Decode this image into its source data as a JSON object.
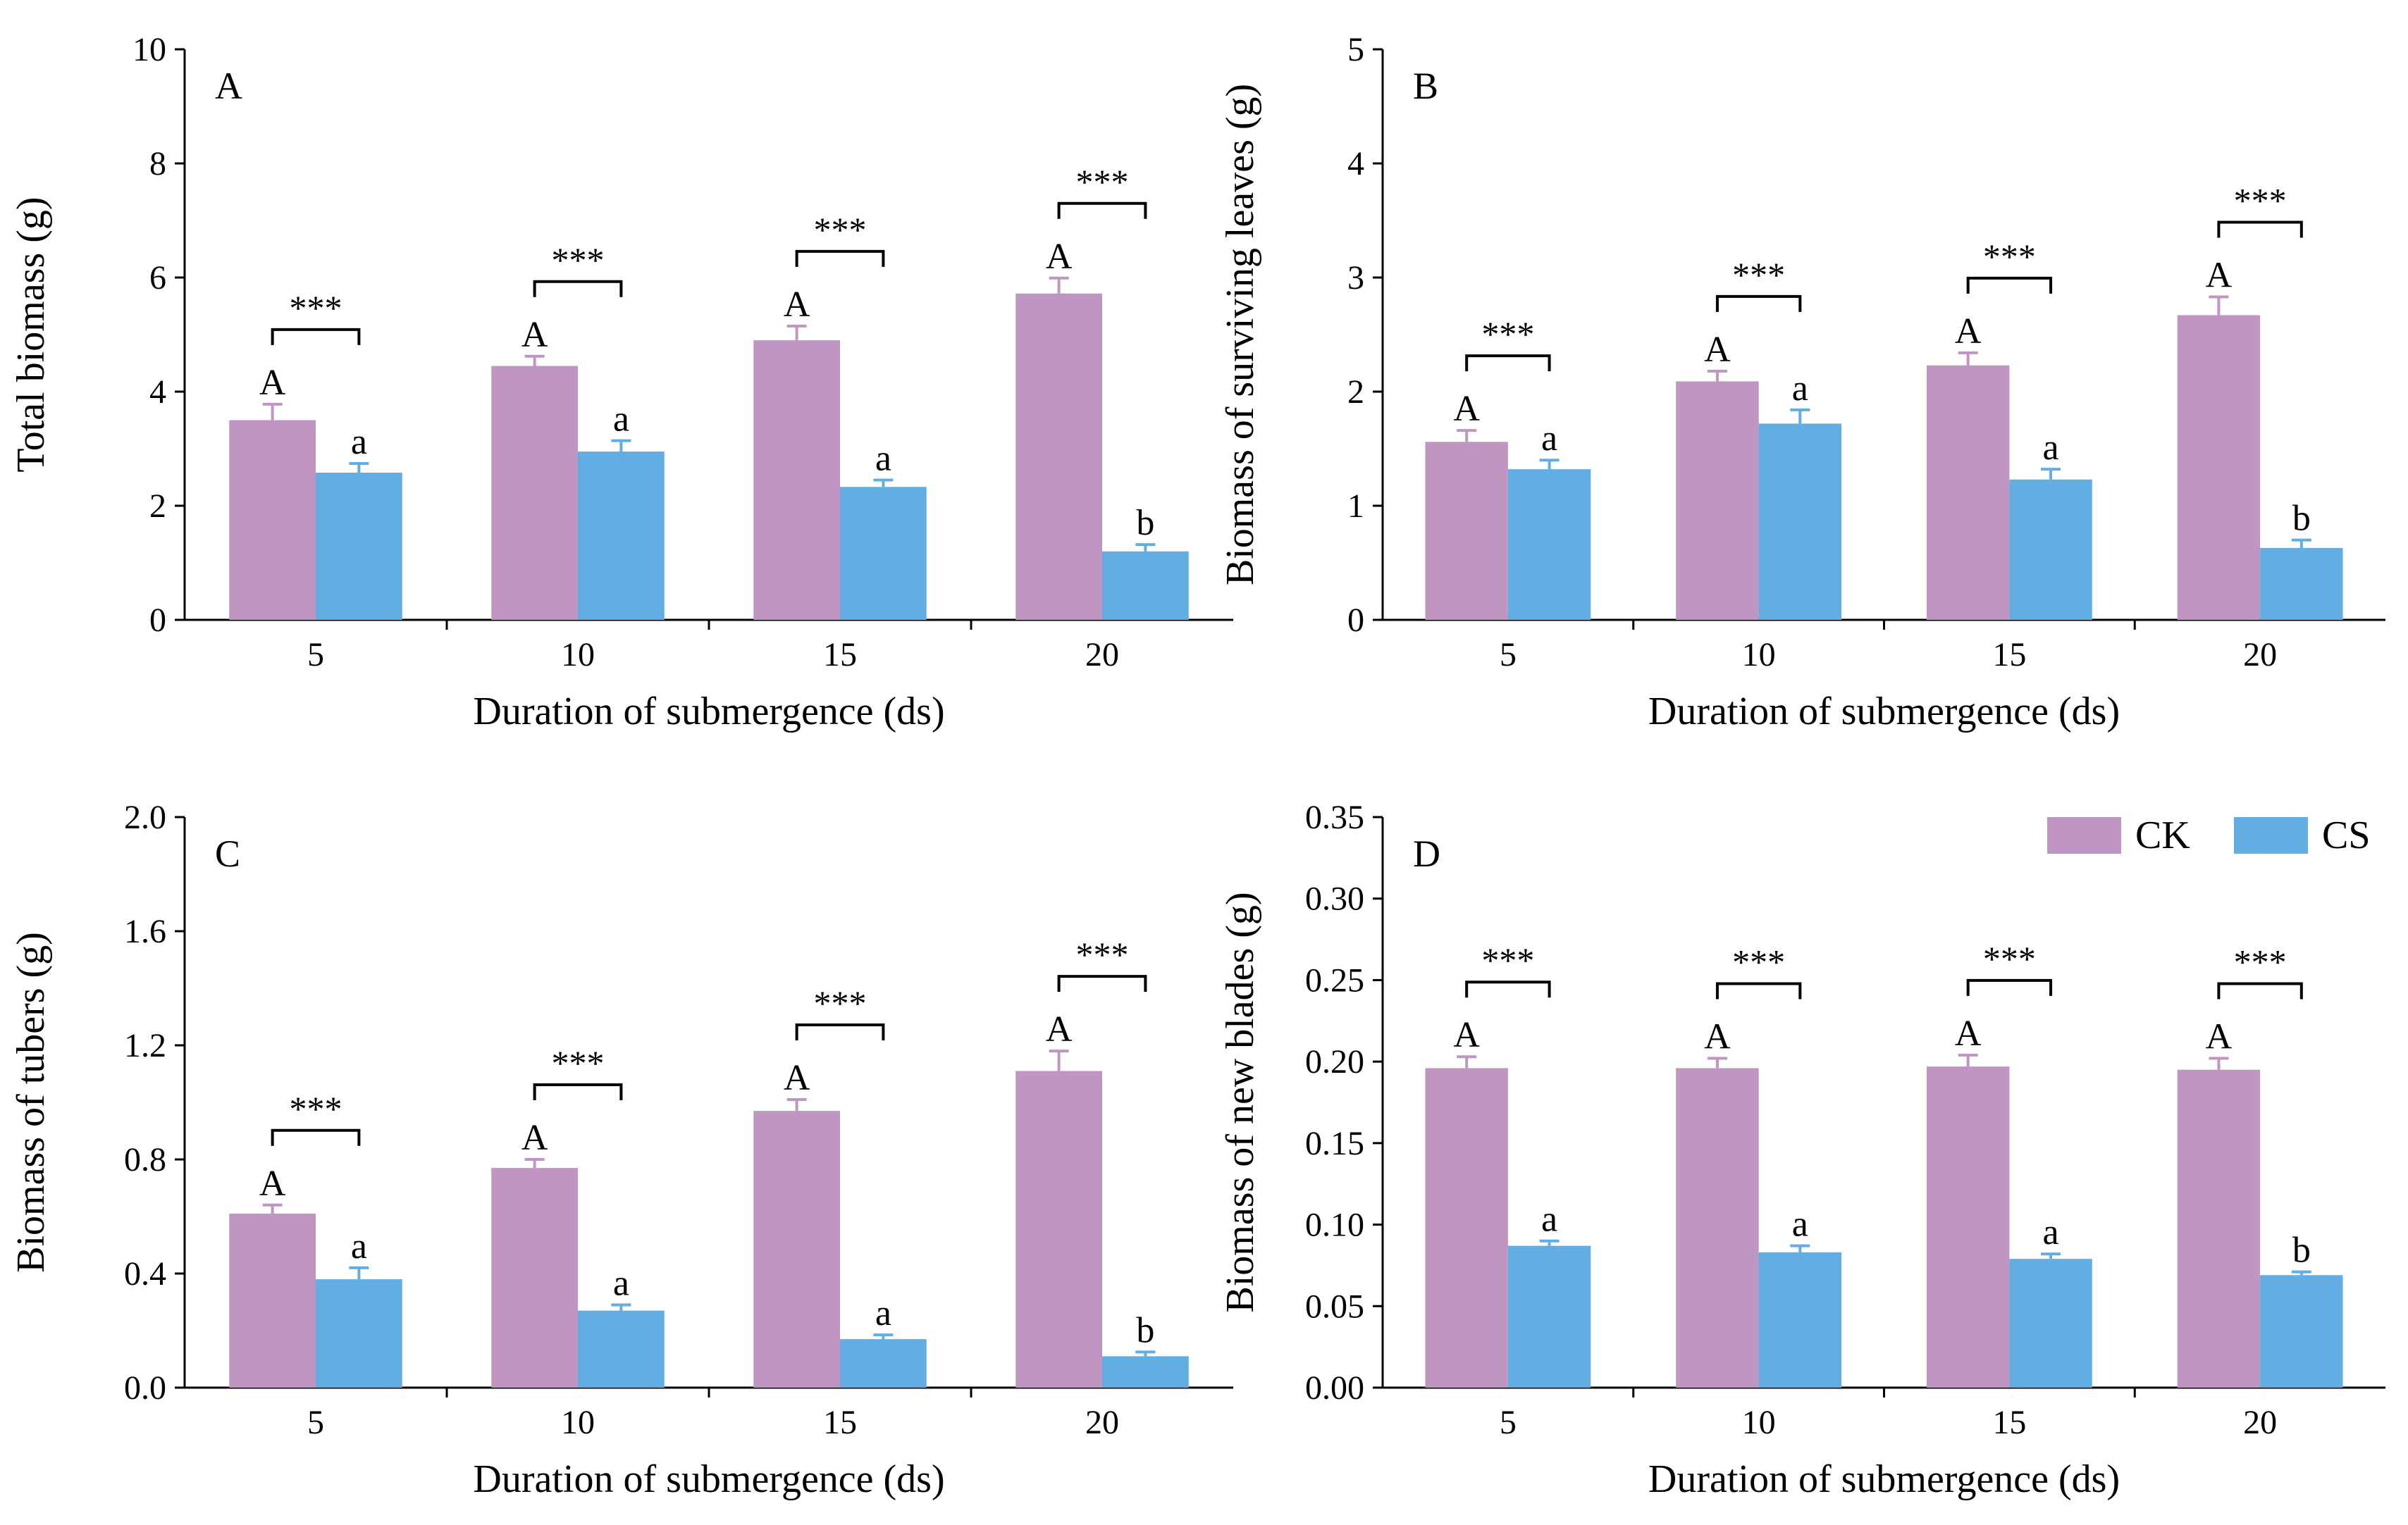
{
  "chart_data": [
    {
      "type": "bar",
      "panel": "A",
      "categories": [
        "5",
        "10",
        "15",
        "20"
      ],
      "series": [
        {
          "name": "CK",
          "values": [
            3.5,
            4.45,
            4.9,
            5.72
          ],
          "errors": [
            0.28,
            0.17,
            0.25,
            0.27
          ],
          "letters": [
            "A",
            "A",
            "A",
            "A"
          ]
        },
        {
          "name": "CS",
          "values": [
            2.58,
            2.95,
            2.33,
            1.2
          ],
          "errors": [
            0.16,
            0.19,
            0.12,
            0.12
          ],
          "letters": [
            "a",
            "a",
            "a",
            "b"
          ]
        }
      ],
      "significance": [
        "***",
        "***",
        "***",
        "***"
      ],
      "xlabel": "Duration of submergence (ds)",
      "ylabel": "Total biomass (g)",
      "ylim": [
        0,
        10
      ],
      "yticks": [
        "0",
        "2",
        "4",
        "6",
        "8",
        "10"
      ]
    },
    {
      "type": "bar",
      "panel": "B",
      "categories": [
        "5",
        "10",
        "15",
        "20"
      ],
      "series": [
        {
          "name": "CK",
          "values": [
            1.56,
            2.09,
            2.23,
            2.67
          ],
          "errors": [
            0.1,
            0.09,
            0.11,
            0.16
          ],
          "letters": [
            "A",
            "A",
            "A",
            "A"
          ]
        },
        {
          "name": "CS",
          "values": [
            1.32,
            1.72,
            1.23,
            0.63
          ],
          "errors": [
            0.08,
            0.12,
            0.09,
            0.07
          ],
          "letters": [
            "a",
            "a",
            "a",
            "b"
          ]
        }
      ],
      "significance": [
        "***",
        "***",
        "***",
        "***"
      ],
      "xlabel": "Duration of submergence (ds)",
      "ylabel": "Biomass of surviving leaves (g)",
      "ylim": [
        0,
        5
      ],
      "yticks": [
        "0",
        "1",
        "2",
        "3",
        "4",
        "5"
      ]
    },
    {
      "type": "bar",
      "panel": "C",
      "categories": [
        "5",
        "10",
        "15",
        "20"
      ],
      "series": [
        {
          "name": "CK",
          "values": [
            0.61,
            0.77,
            0.97,
            1.11
          ],
          "errors": [
            0.03,
            0.03,
            0.04,
            0.07
          ],
          "letters": [
            "A",
            "A",
            "A",
            "A"
          ]
        },
        {
          "name": "CS",
          "values": [
            0.38,
            0.27,
            0.17,
            0.11
          ],
          "errors": [
            0.04,
            0.02,
            0.015,
            0.015
          ],
          "letters": [
            "a",
            "a",
            "a",
            "b"
          ]
        }
      ],
      "significance": [
        "***",
        "***",
        "***",
        "***"
      ],
      "xlabel": "Duration of submergence (ds)",
      "ylabel": "Biomass of tubers (g)",
      "ylim": [
        0,
        2
      ],
      "yticks": [
        "0.0",
        "0.4",
        "0.8",
        "1.2",
        "1.6",
        "2.0"
      ]
    },
    {
      "type": "bar",
      "panel": "D",
      "categories": [
        "5",
        "10",
        "15",
        "20"
      ],
      "series": [
        {
          "name": "CK",
          "values": [
            0.196,
            0.196,
            0.197,
            0.195
          ],
          "errors": [
            0.007,
            0.006,
            0.007,
            0.007
          ],
          "letters": [
            "A",
            "A",
            "A",
            "A"
          ]
        },
        {
          "name": "CS",
          "values": [
            0.087,
            0.083,
            0.079,
            0.069
          ],
          "errors": [
            0.003,
            0.004,
            0.003,
            0.002
          ],
          "letters": [
            "a",
            "a",
            "a",
            "b"
          ]
        }
      ],
      "significance": [
        "***",
        "***",
        "***",
        "***"
      ],
      "xlabel": "Duration of submergence (ds)",
      "ylabel": "Biomass of  new blades (g)",
      "ylim": [
        0,
        0.35
      ],
      "yticks": [
        "0.00",
        "0.05",
        "0.10",
        "0.15",
        "0.20",
        "0.25",
        "0.30",
        "0.35"
      ]
    }
  ],
  "legend": [
    {
      "label": "CK",
      "color": "#bf95c1"
    },
    {
      "label": "CS",
      "color": "#62ade2"
    }
  ],
  "colors": {
    "CK": "#bf95c1",
    "CS": "#62ade2"
  }
}
